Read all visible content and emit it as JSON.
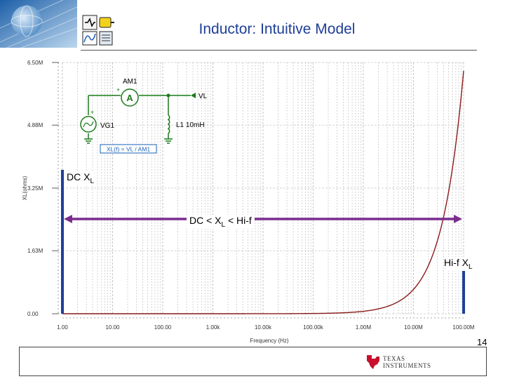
{
  "header": {
    "title": "Inductor: Intuitive Model"
  },
  "page_number": "14",
  "annotations": {
    "dc": {
      "main": "DC X",
      "sub": "L"
    },
    "mid": {
      "pre": "DC < X",
      "sub": "L",
      "post": " < Hi-f"
    },
    "hif": {
      "main": "Hi-f X",
      "sub": "L"
    }
  },
  "circuit": {
    "ammeter": "AM1",
    "ammeter_symbol": "A",
    "probe": "VL",
    "source": "VG1",
    "inductor": "L1 10mH",
    "formula": "XL(f) = VL / AM1"
  },
  "footer": {
    "logo_line1": "Texas",
    "logo_line2": "Instruments"
  },
  "colors": {
    "title": "#1f3f99",
    "curve": "#8b1a1a",
    "markers": "#1f3f99",
    "arrow": "#7b2d8e",
    "circuit": "#1a7a1a"
  },
  "chart_data": {
    "type": "line",
    "x_scale": "log",
    "xlabel": "Frequency (Hz)",
    "ylabel": "XL(ohms)",
    "xlim": [
      1,
      100000000
    ],
    "ylim": [
      0,
      6500000
    ],
    "x_ticks": [
      1,
      10,
      100,
      1000,
      10000,
      100000,
      1000000,
      10000000,
      100000000
    ],
    "x_tick_labels": [
      "1.00",
      "10.00",
      "100.00",
      "1.00k",
      "10.00k",
      "100.00k",
      "1.00M",
      "10.00M",
      "100.00M"
    ],
    "y_ticks": [
      0,
      1630000,
      3250000,
      4880000,
      6500000
    ],
    "y_tick_labels": [
      "0.00",
      "1.63M",
      "3.25M",
      "4.88M",
      "6.50M"
    ],
    "grid": true,
    "series": [
      {
        "x": [
          1,
          10,
          100,
          1000,
          10000,
          100000,
          1000000,
          2000000,
          5000000,
          10000000,
          20000000,
          50000000,
          80000000,
          100000000
        ],
        "y": [
          0.0628,
          0.628,
          6.28,
          62.8,
          628,
          6283,
          62832,
          125664,
          314159,
          628319,
          1256637,
          3141593,
          5026548,
          6283185
        ]
      }
    ],
    "markers": [
      {
        "x": 1
      },
      {
        "x": 100000000
      }
    ],
    "range_arrow": {
      "from": 1,
      "to": 100000000
    }
  }
}
